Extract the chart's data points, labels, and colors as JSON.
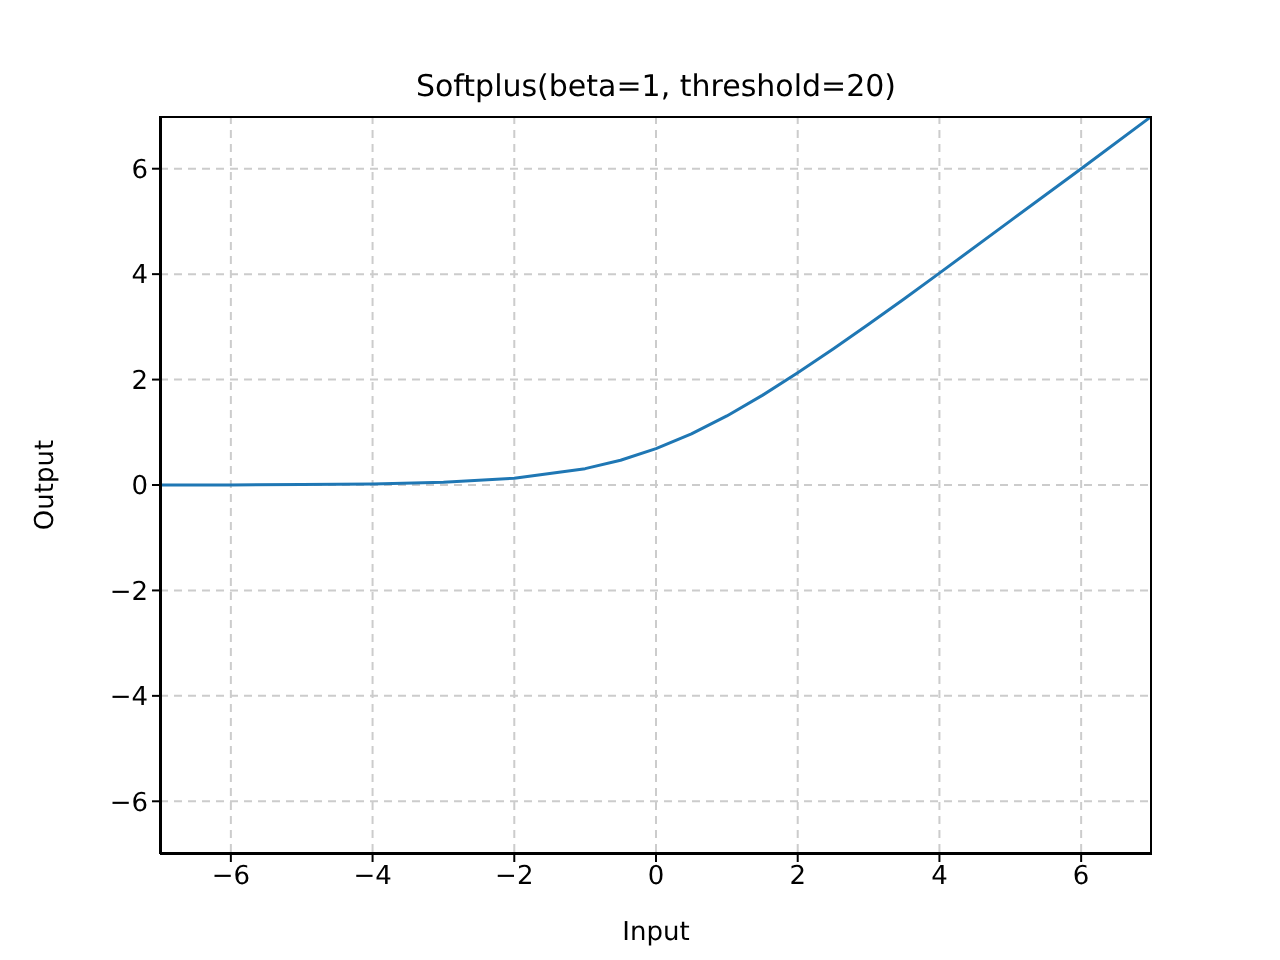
{
  "chart_data": {
    "type": "line",
    "title": "Softplus(beta=1, threshold=20)",
    "xlabel": "Input",
    "ylabel": "Output",
    "x": [
      -7,
      -6,
      -5,
      -4,
      -3,
      -2,
      -1,
      -0.5,
      0,
      0.5,
      1,
      1.5,
      2,
      2.5,
      3,
      3.5,
      4,
      5,
      6,
      7
    ],
    "series": [
      {
        "color": "#1f77b4",
        "values": [
          0,
          0,
          0.01,
          0.02,
          0.05,
          0.13,
          0.31,
          0.47,
          0.69,
          0.97,
          1.31,
          1.7,
          2.13,
          2.58,
          3.05,
          3.53,
          4.02,
          5.01,
          6,
          7
        ]
      }
    ],
    "xlim": [
      -7,
      7
    ],
    "xticks": [
      {
        "value": -6,
        "label": "−6"
      },
      {
        "value": -4,
        "label": "−4"
      },
      {
        "value": -2,
        "label": "−2"
      },
      0,
      2,
      4,
      6
    ],
    "ylim": [
      -7,
      7
    ],
    "yticks": [
      {
        "value": -6,
        "label": "−6"
      },
      {
        "value": -4,
        "label": "−4"
      },
      {
        "value": -2,
        "label": "−2"
      },
      0,
      2,
      4,
      6
    ],
    "grid": true,
    "legend": false,
    "marker": "none",
    "line_style": "solid"
  }
}
